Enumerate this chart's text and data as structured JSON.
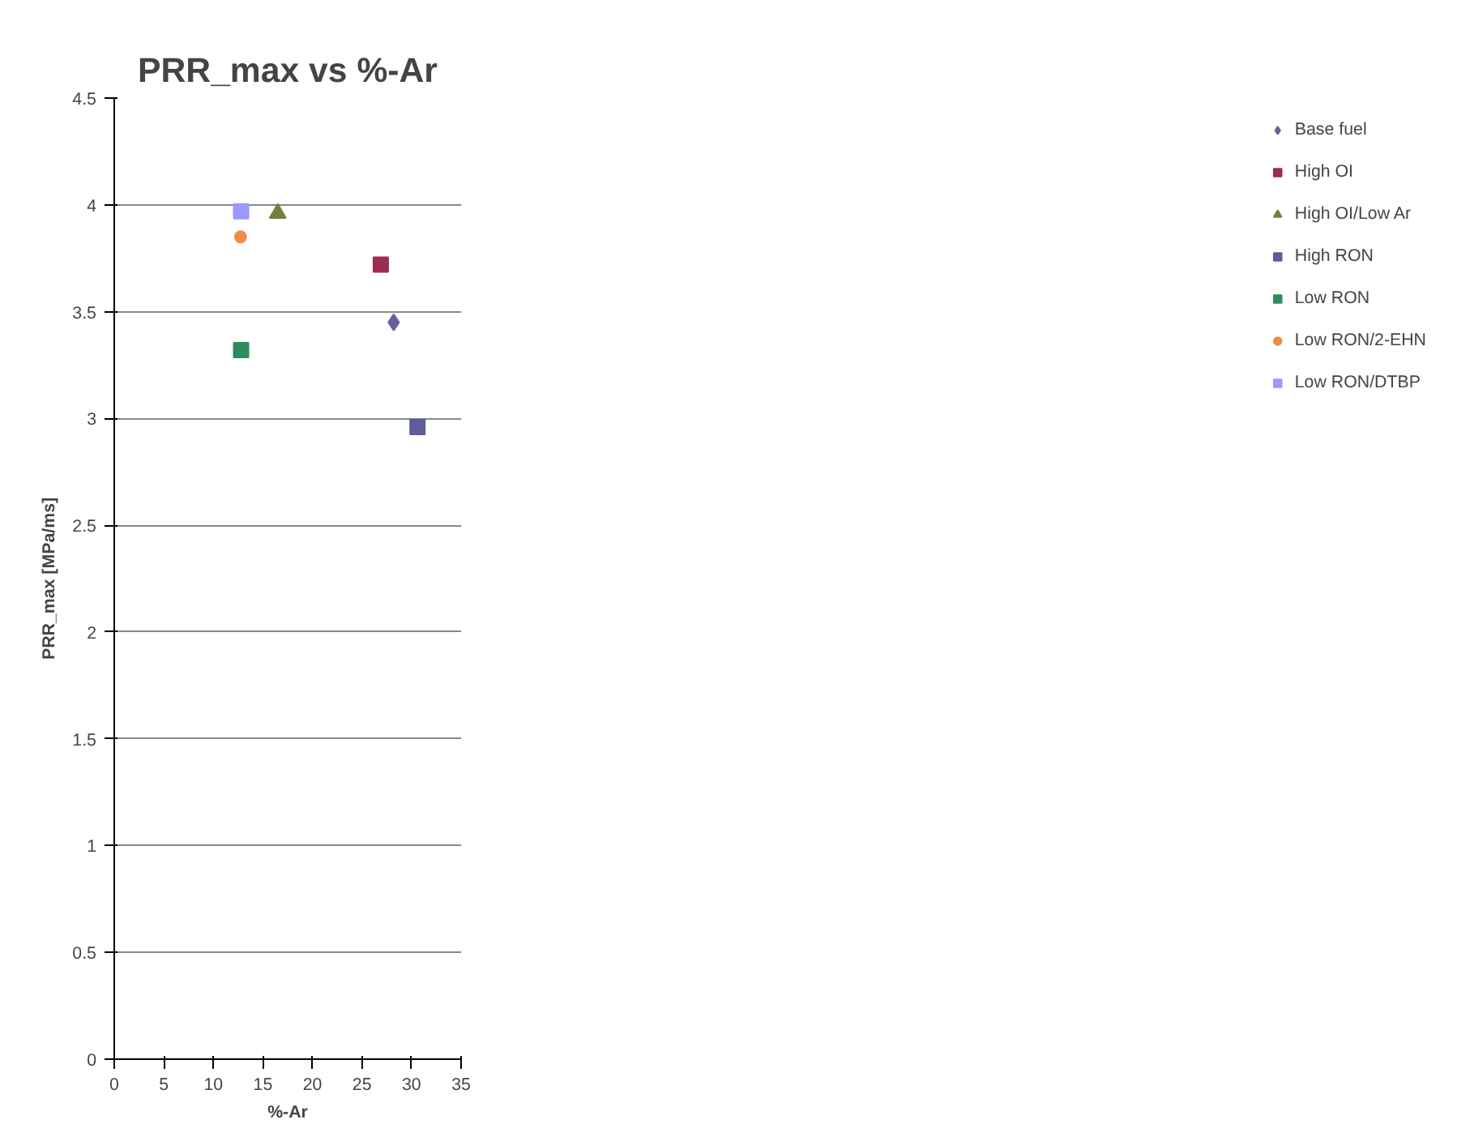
{
  "chart_data": {
    "type": "scatter",
    "title": "PRR_max vs %-Ar",
    "xlabel": "%-Ar",
    "ylabel": "PRR_max [MPa/ms]",
    "xlim": [
      0,
      35
    ],
    "xticks": [
      0,
      5,
      10,
      15,
      20,
      25,
      30,
      35
    ],
    "ylim": [
      0,
      4.5
    ],
    "yticks": [
      0,
      0.5,
      1,
      1.5,
      2,
      2.5,
      3,
      3.5,
      4,
      4.5
    ],
    "grid": "y",
    "legend": "right",
    "series": [
      {
        "name": "Base fuel",
        "color": "#6a5f9a",
        "marker": "diamond",
        "x": [
          28.2
        ],
        "values": [
          3.45
        ]
      },
      {
        "name": "High OI",
        "color": "#9b2d55",
        "marker": "square",
        "x": [
          26.9
        ],
        "values": [
          3.72
        ]
      },
      {
        "name": "High OI/Low Ar",
        "color": "#74813a",
        "marker": "triangle",
        "x": [
          16.5
        ],
        "values": [
          3.96
        ]
      },
      {
        "name": "High RON",
        "color": "#5e5d98",
        "marker": "square",
        "x": [
          30.6
        ],
        "values": [
          2.96
        ]
      },
      {
        "name": "Low RON",
        "color": "#2e8b5e",
        "marker": "square",
        "x": [
          12.8
        ],
        "values": [
          3.32
        ]
      },
      {
        "name": "Low RON/2-EHN",
        "color": "#f08c46",
        "marker": "circle",
        "x": [
          12.75
        ],
        "values": [
          3.85
        ]
      },
      {
        "name": "Low RON/DTBP",
        "color": "#9999ff",
        "marker": "square",
        "x": [
          12.8
        ],
        "values": [
          3.97
        ]
      }
    ]
  }
}
